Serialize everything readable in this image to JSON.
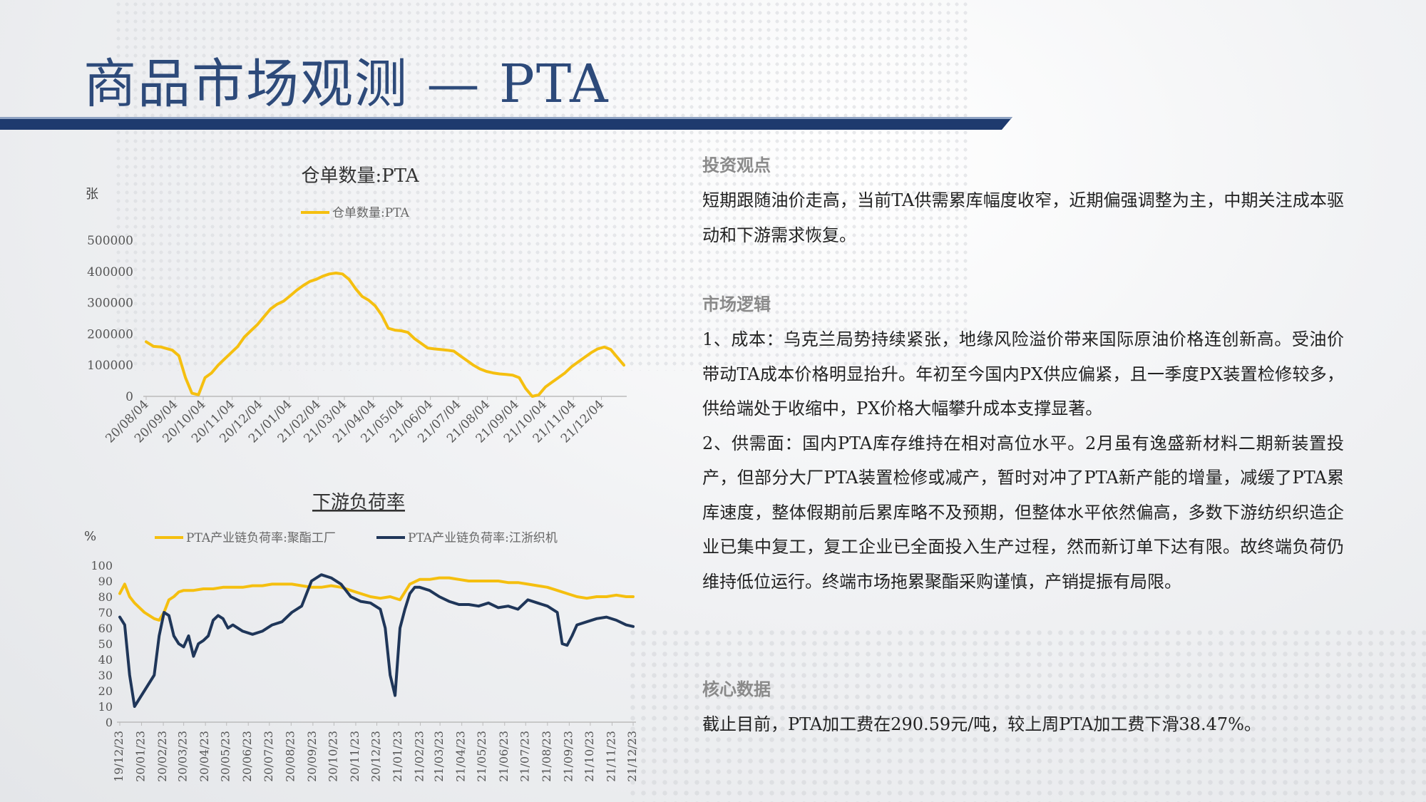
{
  "page": {
    "title": "商品市场观测 — PTA"
  },
  "colors": {
    "title": "#2d4a7a",
    "band_dark": "#1e3a6e",
    "band_light": "#8fa3c3",
    "series_yellow": "#f5bf0f",
    "series_navy": "#1f3659",
    "axis_text": "#555555"
  },
  "chart_data": [
    {
      "type": "line",
      "title": "仓单数量:PTA",
      "unit_label": "张",
      "ylim": [
        0,
        500000
      ],
      "y_ticks": [
        "0",
        "100000",
        "200000",
        "300000",
        "400000",
        "500000"
      ],
      "x_tick_labels": [
        "20/08/04",
        "20/09/04",
        "20/10/04",
        "20/11/04",
        "20/12/04",
        "21/01/04",
        "21/02/04",
        "21/03/04",
        "21/04/04",
        "21/05/04",
        "21/06/04",
        "21/07/04",
        "21/08/04",
        "21/09/04",
        "21/10/04",
        "21/11/04",
        "21/12/04"
      ],
      "grid": false,
      "legend_position": "top",
      "series": [
        {
          "name": "仓单数量:PTA",
          "color": "#f5bf0f",
          "x": [
            "2020-08-04",
            "2020-08-12",
            "2020-08-20",
            "2020-09-01",
            "2020-09-08",
            "2020-09-15",
            "2020-09-22",
            "2020-09-29",
            "2020-10-06",
            "2020-10-13",
            "2020-10-20",
            "2020-10-27",
            "2020-11-03",
            "2020-11-10",
            "2020-11-17",
            "2020-11-24",
            "2020-12-01",
            "2020-12-08",
            "2020-12-15",
            "2020-12-22",
            "2020-12-29",
            "2021-01-05",
            "2021-01-12",
            "2021-01-19",
            "2021-01-26",
            "2021-02-02",
            "2021-02-09",
            "2021-02-16",
            "2021-02-23",
            "2021-03-02",
            "2021-03-09",
            "2021-03-16",
            "2021-03-23",
            "2021-03-30",
            "2021-04-06",
            "2021-04-13",
            "2021-04-20",
            "2021-04-27",
            "2021-05-04",
            "2021-05-11",
            "2021-05-18",
            "2021-05-25",
            "2021-06-01",
            "2021-06-08",
            "2021-06-15",
            "2021-06-22",
            "2021-06-29",
            "2021-07-06",
            "2021-07-13",
            "2021-07-20",
            "2021-07-27",
            "2021-08-03",
            "2021-08-10",
            "2021-08-17",
            "2021-08-24",
            "2021-08-31",
            "2021-09-07",
            "2021-09-14",
            "2021-09-21",
            "2021-09-28",
            "2021-10-05",
            "2021-10-12",
            "2021-10-19",
            "2021-10-26",
            "2021-11-02",
            "2021-11-09",
            "2021-11-16",
            "2021-11-23",
            "2021-11-30",
            "2021-12-07",
            "2021-12-14",
            "2021-12-21",
            "2021-12-28"
          ],
          "values": [
            175000,
            160000,
            158000,
            148000,
            130000,
            60000,
            10000,
            5000,
            60000,
            75000,
            100000,
            120000,
            140000,
            160000,
            190000,
            210000,
            230000,
            255000,
            280000,
            295000,
            305000,
            322000,
            340000,
            355000,
            368000,
            375000,
            385000,
            392000,
            395000,
            392000,
            375000,
            345000,
            320000,
            308000,
            290000,
            260000,
            218000,
            212000,
            210000,
            205000,
            185000,
            170000,
            155000,
            152000,
            150000,
            148000,
            145000,
            130000,
            115000,
            100000,
            88000,
            80000,
            75000,
            72000,
            70000,
            68000,
            60000,
            25000,
            0,
            5000,
            30000,
            45000,
            60000,
            75000,
            95000,
            110000,
            125000,
            140000,
            152000,
            158000,
            150000,
            125000,
            100000
          ]
        }
      ]
    },
    {
      "type": "line",
      "title": "下游负荷率",
      "unit_label": "%",
      "ylim": [
        0,
        100
      ],
      "y_ticks": [
        "0",
        "10",
        "20",
        "30",
        "40",
        "50",
        "60",
        "70",
        "80",
        "90",
        "100"
      ],
      "x_tick_labels": [
        "19/12/23",
        "20/01/23",
        "20/02/23",
        "20/03/23",
        "20/04/23",
        "20/05/23",
        "20/06/23",
        "20/07/23",
        "20/08/23",
        "20/09/23",
        "20/10/23",
        "20/11/23",
        "20/12/23",
        "21/01/23",
        "21/02/23",
        "21/03/23",
        "21/04/23",
        "21/05/23",
        "21/06/23",
        "21/07/23",
        "21/08/23",
        "21/09/23",
        "21/10/23",
        "21/11/23",
        "21/12/23"
      ],
      "grid": false,
      "legend_position": "top",
      "series": [
        {
          "name": "PTA产业链负荷率:聚酯工厂",
          "color": "#f5bf0f",
          "x": [
            "2019-12-23",
            "2019-12-30",
            "2020-01-06",
            "2020-01-13",
            "2020-01-20",
            "2020-01-27",
            "2020-02-03",
            "2020-02-10",
            "2020-02-17",
            "2020-02-24",
            "2020-03-02",
            "2020-03-09",
            "2020-03-16",
            "2020-03-23",
            "2020-04-06",
            "2020-04-20",
            "2020-05-04",
            "2020-05-18",
            "2020-06-01",
            "2020-06-15",
            "2020-06-29",
            "2020-07-13",
            "2020-07-27",
            "2020-08-10",
            "2020-08-24",
            "2020-09-07",
            "2020-09-21",
            "2020-10-05",
            "2020-10-19",
            "2020-11-02",
            "2020-11-16",
            "2020-11-30",
            "2020-12-14",
            "2020-12-28",
            "2021-01-11",
            "2021-01-25",
            "2021-02-08",
            "2021-02-22",
            "2021-03-08",
            "2021-03-22",
            "2021-04-05",
            "2021-04-19",
            "2021-05-03",
            "2021-05-17",
            "2021-05-31",
            "2021-06-14",
            "2021-06-28",
            "2021-07-12",
            "2021-07-26",
            "2021-08-09",
            "2021-08-23",
            "2021-09-06",
            "2021-09-20",
            "2021-10-04",
            "2021-10-18",
            "2021-11-01",
            "2021-11-15",
            "2021-11-29",
            "2021-12-13",
            "2021-12-23"
          ],
          "values": [
            82,
            88,
            80,
            76,
            73,
            70,
            68,
            66,
            65,
            70,
            78,
            80,
            83,
            84,
            84,
            85,
            85,
            86,
            86,
            86,
            87,
            87,
            88,
            88,
            88,
            87,
            86,
            86,
            87,
            86,
            84,
            82,
            80,
            79,
            80,
            78,
            88,
            91,
            91,
            92,
            92,
            91,
            90,
            90,
            90,
            90,
            89,
            89,
            88,
            87,
            86,
            84,
            82,
            80,
            79,
            80,
            80,
            81,
            80,
            80
          ]
        },
        {
          "name": "PTA产业链负荷率:江浙织机",
          "color": "#1f3659",
          "x": [
            "2019-12-23",
            "2019-12-30",
            "2020-01-06",
            "2020-01-13",
            "2020-01-20",
            "2020-01-27",
            "2020-02-03",
            "2020-02-10",
            "2020-02-17",
            "2020-02-24",
            "2020-03-02",
            "2020-03-09",
            "2020-03-16",
            "2020-03-23",
            "2020-03-30",
            "2020-04-06",
            "2020-04-13",
            "2020-04-20",
            "2020-04-27",
            "2020-05-04",
            "2020-05-11",
            "2020-05-18",
            "2020-05-25",
            "2020-06-01",
            "2020-06-15",
            "2020-06-29",
            "2020-07-13",
            "2020-07-27",
            "2020-08-10",
            "2020-08-24",
            "2020-09-07",
            "2020-09-21",
            "2020-10-05",
            "2020-10-19",
            "2020-11-02",
            "2020-11-16",
            "2020-11-30",
            "2020-12-14",
            "2020-12-28",
            "2021-01-04",
            "2021-01-11",
            "2021-01-18",
            "2021-01-25",
            "2021-02-01",
            "2021-02-08",
            "2021-02-15",
            "2021-02-22",
            "2021-03-08",
            "2021-03-22",
            "2021-04-05",
            "2021-04-19",
            "2021-05-03",
            "2021-05-17",
            "2021-05-31",
            "2021-06-14",
            "2021-06-28",
            "2021-07-12",
            "2021-07-26",
            "2021-08-09",
            "2021-08-23",
            "2021-09-06",
            "2021-09-13",
            "2021-09-20",
            "2021-09-27",
            "2021-10-04",
            "2021-10-18",
            "2021-11-01",
            "2021-11-15",
            "2021-11-29",
            "2021-12-13",
            "2021-12-23"
          ],
          "values": [
            67,
            62,
            30,
            10,
            15,
            20,
            25,
            30,
            55,
            70,
            68,
            55,
            50,
            48,
            55,
            42,
            50,
            52,
            55,
            65,
            68,
            66,
            60,
            62,
            58,
            56,
            58,
            62,
            64,
            70,
            74,
            90,
            94,
            92,
            88,
            80,
            77,
            76,
            72,
            60,
            30,
            17,
            60,
            72,
            82,
            86,
            86,
            84,
            80,
            77,
            75,
            75,
            74,
            76,
            73,
            74,
            72,
            78,
            76,
            74,
            70,
            50,
            49,
            55,
            62,
            64,
            66,
            67,
            65,
            62,
            61
          ]
        }
      ]
    }
  ],
  "right": {
    "view": {
      "title": "投资观点",
      "text": "短期跟随油价走高，当前TA供需累库幅度收窄，近期偏强调整为主，中期关注成本驱动和下游需求恢复。"
    },
    "logic": {
      "title": "市场逻辑",
      "p1": "1、成本：乌克兰局势持续紧张，地缘风险溢价带来国际原油价格连创新高。受油价带动TA成本价格明显抬升。年初至今国内PX供应偏紧，且一季度PX装置检修较多，供给端处于收缩中，PX价格大幅攀升成本支撑显著。",
      "p2": "2、供需面：国内PTA库存维持在相对高位水平。2月虽有逸盛新材料二期新装置投产，但部分大厂PTA装置检修或减产，暂时对冲了PTA新产能的增量，减缓了PTA累库速度，整体假期前后累库略不及预期，但整体水平依然偏高，多数下游纺织织造企业已集中复工，复工企业已全面投入生产过程，然而新订单下达有限。故终端负荷仍维持低位运行。终端市场拖累聚酯采购谨慎，产销提振有局限。"
    },
    "core": {
      "title": "核心数据",
      "text": "截止目前，PTA加工费在290.59元/吨，较上周PTA加工费下滑38.47%。"
    }
  }
}
